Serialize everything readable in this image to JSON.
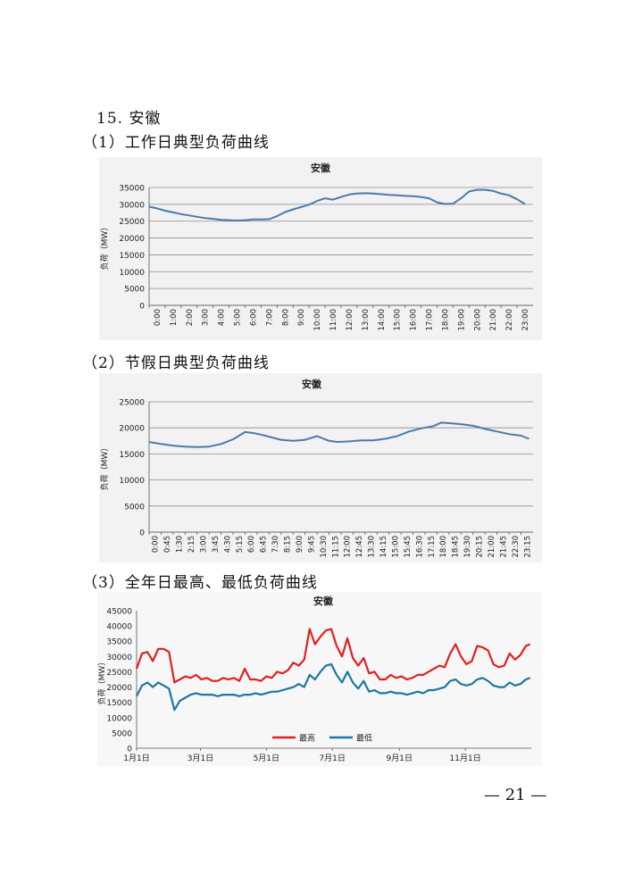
{
  "section_title": "15. 安徽",
  "chart1_heading": "（1）工作日典型负荷曲线",
  "chart2_heading": "（2）节假日典型负荷曲线",
  "chart3_heading": "（3）全年日最高、最低负荷曲线",
  "page_number": "— 21 —",
  "colors": {
    "line_blue": "#4a7ba7",
    "series_high": "#e02020",
    "series_low": "#1f77a4",
    "grid": "#8c8c8c",
    "panel": "#f2f2f2"
  },
  "chart_data": [
    {
      "type": "line",
      "title": "安徽",
      "ylabel": "负荷（MW）",
      "xlabel": "",
      "ylim": [
        0,
        35000
      ],
      "yticks": [
        0,
        5000,
        10000,
        15000,
        20000,
        25000,
        30000,
        35000
      ],
      "grid": true,
      "x_tick_labels": [
        "0:00",
        "1:00",
        "2:00",
        "3:00",
        "4:00",
        "5:00",
        "6:00",
        "7:00",
        "8:00",
        "9:00",
        "10:00",
        "11:00",
        "12:00",
        "13:00",
        "14:00",
        "15:00",
        "16:00",
        "17:00",
        "18:00",
        "19:00",
        "20:00",
        "21:00",
        "22:00",
        "23:00"
      ],
      "x": [
        0,
        0.5,
        1,
        1.5,
        2,
        2.5,
        3,
        3.5,
        4,
        4.5,
        5,
        5.5,
        6,
        6.5,
        7,
        7.5,
        8,
        8.5,
        9,
        9.5,
        10,
        10.5,
        11,
        11.5,
        12,
        12.5,
        13,
        13.5,
        14,
        14.5,
        15,
        15.5,
        16,
        16.5,
        17,
        17.5,
        18,
        18.5,
        19,
        19.5,
        20,
        20.5,
        21,
        21.5,
        22,
        22.5,
        23,
        23.5
      ],
      "series": [
        {
          "values": [
            29300,
            28800,
            28100,
            27600,
            27100,
            26700,
            26300,
            25900,
            25700,
            25400,
            25300,
            25200,
            25300,
            25500,
            25500,
            25600,
            26500,
            27700,
            28500,
            29200,
            29900,
            31000,
            31800,
            31400,
            32200,
            32900,
            33200,
            33300,
            33200,
            33000,
            32800,
            32700,
            32500,
            32400,
            32200,
            31800,
            30600,
            30100,
            30200,
            31800,
            33800,
            34300,
            34300,
            34000,
            33200,
            32700,
            31500,
            30100
          ]
        }
      ]
    },
    {
      "type": "line",
      "title": "安徽",
      "ylabel": "负荷（MW）",
      "xlabel": "",
      "ylim": [
        0,
        25000
      ],
      "yticks": [
        0,
        5000,
        10000,
        15000,
        20000,
        25000
      ],
      "grid": true,
      "x_tick_labels": [
        "0:00",
        "0:45",
        "1:30",
        "2:15",
        "3:00",
        "3:45",
        "4:30",
        "5:15",
        "6:00",
        "6:45",
        "7:30",
        "8:15",
        "9:00",
        "9:45",
        "10:30",
        "11:15",
        "12:00",
        "12:45",
        "13:30",
        "14:15",
        "15:00",
        "15:45",
        "16:30",
        "17:15",
        "18:00",
        "18:45",
        "19:30",
        "20:15",
        "21:00",
        "21:45",
        "22:30",
        "23:15"
      ],
      "x": [
        0,
        0.75,
        1.5,
        2.25,
        3,
        3.75,
        4.5,
        5.25,
        6,
        6.5,
        7,
        7.5,
        8.25,
        9,
        9.75,
        10.5,
        11.25,
        11.75,
        12.5,
        13.25,
        14,
        14.75,
        15.5,
        16.25,
        17,
        17.75,
        18.25,
        18.75,
        19.5,
        20.25,
        21,
        21.75,
        22.5,
        23.25,
        23.75
      ],
      "series": [
        {
          "values": [
            17300,
            16900,
            16600,
            16400,
            16300,
            16400,
            16900,
            17800,
            19200,
            19000,
            18700,
            18300,
            17700,
            17500,
            17700,
            18400,
            17500,
            17300,
            17400,
            17600,
            17600,
            17900,
            18400,
            19300,
            19900,
            20300,
            21000,
            20900,
            20700,
            20400,
            19800,
            19300,
            18800,
            18500,
            17900
          ]
        }
      ]
    },
    {
      "type": "line",
      "title": "安徽",
      "ylabel": "负荷（MW）",
      "xlabel": "",
      "ylim": [
        0,
        45000
      ],
      "yticks": [
        0,
        5000,
        10000,
        15000,
        20000,
        25000,
        30000,
        35000,
        40000,
        45000
      ],
      "grid": false,
      "legend": "bottom-center",
      "x_tick_labels": [
        "1月1日",
        "3月1日",
        "5月1日",
        "7月1日",
        "9月1日",
        "11月1日"
      ],
      "x_tick_days": [
        0,
        59,
        120,
        181,
        243,
        304
      ],
      "x_days": [
        0,
        5,
        10,
        15,
        20,
        25,
        30,
        35,
        40,
        45,
        50,
        55,
        60,
        65,
        70,
        75,
        80,
        85,
        90,
        95,
        100,
        105,
        110,
        115,
        120,
        125,
        130,
        135,
        140,
        145,
        150,
        155,
        160,
        165,
        170,
        175,
        180,
        185,
        190,
        195,
        200,
        205,
        210,
        215,
        220,
        225,
        230,
        235,
        240,
        245,
        250,
        255,
        260,
        265,
        270,
        275,
        280,
        285,
        290,
        295,
        300,
        305,
        310,
        315,
        320,
        325,
        330,
        335,
        340,
        345,
        350,
        355,
        360,
        364
      ],
      "series": [
        {
          "name": "最高",
          "values": [
            26000,
            31000,
            31500,
            28500,
            32500,
            32500,
            31500,
            21500,
            22500,
            23500,
            23000,
            24000,
            22500,
            23000,
            22000,
            22000,
            23000,
            22500,
            23000,
            22000,
            26000,
            22500,
            22500,
            22000,
            23500,
            23000,
            25000,
            24500,
            25500,
            28000,
            27000,
            29000,
            39000,
            34000,
            36500,
            38500,
            39000,
            33500,
            30000,
            36000,
            29500,
            27000,
            29500,
            24500,
            25000,
            22500,
            22500,
            24000,
            23000,
            23500,
            22500,
            23000,
            24000,
            24000,
            25000,
            26000,
            27000,
            26500,
            31000,
            34000,
            30000,
            27500,
            28500,
            33500,
            33000,
            32000,
            27500,
            26500,
            27000,
            31000,
            29000,
            30500,
            33500,
            34000
          ]
        },
        {
          "name": "最低",
          "values": [
            17000,
            20500,
            21500,
            20000,
            21500,
            20500,
            19500,
            12500,
            15500,
            16500,
            17500,
            18000,
            17500,
            17500,
            17500,
            17000,
            17500,
            17500,
            17500,
            17000,
            17500,
            17500,
            18000,
            17500,
            18000,
            18500,
            18500,
            19000,
            19500,
            20000,
            21000,
            20000,
            24000,
            22500,
            25000,
            27000,
            27500,
            24000,
            21500,
            25000,
            21500,
            19500,
            22000,
            18500,
            19000,
            18000,
            18000,
            18500,
            18000,
            18000,
            17500,
            18000,
            18500,
            18000,
            19000,
            19000,
            19500,
            20000,
            22000,
            22500,
            21000,
            20500,
            21000,
            22500,
            23000,
            22000,
            20500,
            20000,
            20000,
            21500,
            20500,
            21000,
            22500,
            23000
          ]
        }
      ]
    }
  ]
}
